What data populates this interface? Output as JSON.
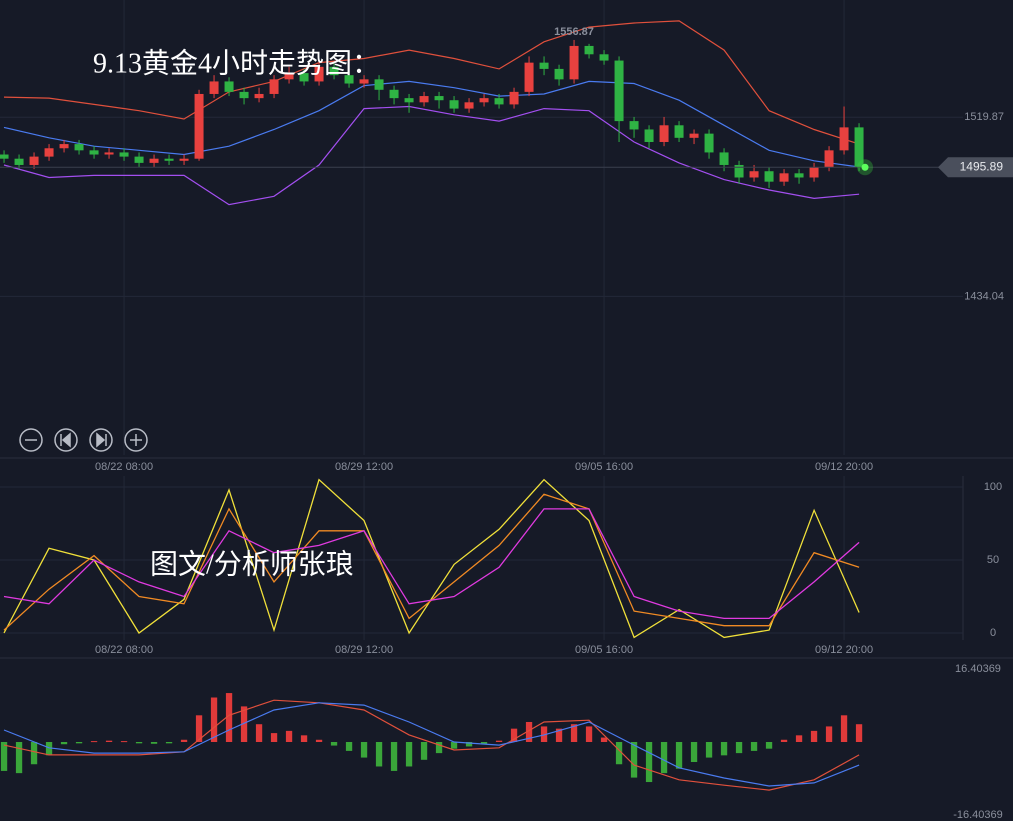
{
  "chart_data": [
    {
      "type": "candlestick",
      "title": "9.13黄金4小时走势图：",
      "up_color": "#e8413f",
      "down_color": "#2fb344",
      "open": [
        1502,
        1500,
        1497,
        1501,
        1505,
        1507,
        1504,
        1502,
        1503,
        1501,
        1498,
        1500,
        1499,
        1500,
        1531,
        1537,
        1532,
        1529,
        1531,
        1538,
        1541,
        1537,
        1544,
        1540,
        1536,
        1538,
        1533,
        1529,
        1527,
        1530,
        1528,
        1524,
        1527,
        1529,
        1526,
        1532,
        1546,
        1543,
        1538,
        1554,
        1550,
        1547,
        1518,
        1514,
        1508,
        1516,
        1510,
        1512,
        1503,
        1497,
        1491,
        1494,
        1489,
        1493,
        1491,
        1496,
        1504,
        1515
      ],
      "high": [
        1504,
        1502,
        1503,
        1507,
        1509,
        1509,
        1506,
        1505,
        1505,
        1503,
        1502,
        1502,
        1502,
        1533,
        1540,
        1539,
        1534,
        1534,
        1540,
        1544,
        1543,
        1546,
        1546,
        1542,
        1540,
        1540,
        1535,
        1531,
        1532,
        1532,
        1530,
        1529,
        1531,
        1531,
        1534,
        1549,
        1549,
        1545,
        1556.87,
        1555,
        1552,
        1549,
        1520,
        1516,
        1520,
        1518,
        1514,
        1514,
        1505,
        1499,
        1497,
        1496,
        1495,
        1495,
        1498,
        1506,
        1525,
        1517
      ],
      "low": [
        1498,
        1495,
        1495,
        1499,
        1503,
        1502,
        1500,
        1500,
        1499,
        1496,
        1496,
        1497,
        1497,
        1499,
        1529,
        1530,
        1526,
        1527,
        1529,
        1536,
        1535,
        1535,
        1538,
        1534,
        1534,
        1528,
        1526,
        1522,
        1525,
        1524,
        1522,
        1522,
        1525,
        1524,
        1524,
        1530,
        1540,
        1535,
        1536,
        1548,
        1545,
        1508,
        1510,
        1505,
        1506,
        1508,
        1507,
        1500,
        1494,
        1488,
        1489,
        1486,
        1487,
        1488,
        1489,
        1494,
        1502,
        1494
      ],
      "close": [
        1500,
        1497,
        1501,
        1505,
        1507,
        1504,
        1502,
        1503,
        1501,
        1498,
        1500,
        1499,
        1500,
        1531,
        1537,
        1532,
        1529,
        1531,
        1538,
        1541,
        1537,
        1544,
        1540,
        1536,
        1538,
        1533,
        1529,
        1527,
        1530,
        1528,
        1524,
        1527,
        1529,
        1526,
        1532,
        1546,
        1543,
        1538,
        1554,
        1550,
        1547,
        1518,
        1514,
        1508,
        1516,
        1510,
        1512,
        1503,
        1497,
        1491,
        1494,
        1489,
        1493,
        1491,
        1496,
        1504,
        1515,
        1495.89
      ],
      "bands": [
        {
          "color": "#e0503c",
          "x": [
            0,
            3,
            6,
            9,
            12,
            15,
            18,
            21,
            24,
            27,
            30,
            33,
            36,
            39,
            42,
            45,
            48,
            51,
            54,
            57
          ],
          "values": [
            1529.5,
            1529,
            1526,
            1523,
            1519,
            1532,
            1537,
            1546,
            1548,
            1552,
            1548,
            1543,
            1556,
            1563,
            1565,
            1566,
            1552,
            1523,
            1514,
            1507
          ]
        },
        {
          "color": "#4a7bf0",
          "x": [
            0,
            3,
            6,
            9,
            12,
            15,
            18,
            21,
            24,
            27,
            30,
            33,
            36,
            39,
            42,
            45,
            48,
            51,
            54,
            57
          ],
          "values": [
            1515,
            1510,
            1506,
            1504,
            1502,
            1506,
            1514,
            1523,
            1535,
            1537,
            1534,
            1530,
            1531,
            1537,
            1536,
            1528,
            1516,
            1504,
            1499,
            1496
          ]
        },
        {
          "color": "#a34ff0",
          "x": [
            0,
            3,
            6,
            9,
            12,
            15,
            18,
            21,
            24,
            27,
            30,
            33,
            36,
            39,
            42,
            45,
            48,
            51,
            54,
            57
          ],
          "values": [
            1497,
            1491,
            1492,
            1492,
            1492,
            1478,
            1482,
            1497,
            1524,
            1525,
            1521,
            1518,
            1524,
            1523,
            1508,
            1498,
            1490,
            1485,
            1481,
            1483
          ]
        }
      ],
      "xlim": [
        -0.27,
        63.93
      ],
      "ylim": [
        1358.1,
        1576
      ],
      "yticks": [
        1434.04,
        1519.87
      ],
      "xticks": [
        {
          "value": 8,
          "label": "08/22 08:00"
        },
        {
          "value": 24,
          "label": "08/29 12:00"
        },
        {
          "value": 40,
          "label": "09/05 16:00"
        },
        {
          "value": 56,
          "label": "09/12 20:00"
        }
      ],
      "grid": true
    },
    {
      "type": "line",
      "annotation": "图文/分析师张琅",
      "series": [
        {
          "color": "#f0e03a",
          "x": [
            0,
            3,
            6,
            9,
            12,
            15,
            18,
            21,
            24,
            27,
            30,
            33,
            36,
            39,
            42,
            45,
            48,
            51,
            54,
            57
          ],
          "values": [
            0,
            58,
            50,
            0,
            23,
            98,
            2,
            105,
            77,
            0,
            47,
            71,
            105,
            77,
            -3,
            16,
            -3,
            2,
            84,
            14
          ]
        },
        {
          "color": "#f08a24",
          "x": [
            0,
            3,
            6,
            9,
            12,
            15,
            18,
            21,
            24,
            27,
            30,
            33,
            36,
            39,
            42,
            45,
            48,
            51,
            54,
            57
          ],
          "values": [
            2,
            30,
            53,
            25,
            20,
            85,
            35,
            70,
            70,
            10,
            35,
            60,
            95,
            85,
            15,
            10,
            5,
            5,
            55,
            45
          ]
        },
        {
          "color": "#e03ae0",
          "x": [
            0,
            3,
            6,
            9,
            12,
            15,
            18,
            21,
            24,
            27,
            30,
            33,
            36,
            39,
            42,
            45,
            48,
            51,
            54,
            57
          ],
          "values": [
            25,
            20,
            50,
            35,
            25,
            70,
            55,
            60,
            70,
            20,
            25,
            45,
            85,
            85,
            25,
            15,
            10,
            10,
            35,
            62
          ]
        }
      ],
      "xlim": [
        -0.27,
        63.93
      ],
      "ylim": [
        -4.8,
        107.5
      ],
      "yticks": [
        0,
        50,
        100
      ],
      "xticks": [
        {
          "value": 8,
          "label": "08/22 08:00"
        },
        {
          "value": 24,
          "label": "08/29 12:00"
        },
        {
          "value": 40,
          "label": "09/05 16:00"
        },
        {
          "value": 56,
          "label": "09/12 20:00"
        }
      ],
      "grid": true
    },
    {
      "type": "macd",
      "up_color": "#e03a3a",
      "down_color": "#3aa63a",
      "values": [
        -6.5,
        -7,
        -5,
        -3,
        -0.5,
        -0.3,
        0.2,
        0.3,
        0.2,
        -0.3,
        -0.4,
        -0.3,
        0.5,
        6,
        10,
        11,
        8,
        4,
        2,
        2.5,
        1.5,
        0.5,
        -0.8,
        -2,
        -3.5,
        -5.5,
        -6.5,
        -5.5,
        -4,
        -2.5,
        -1.5,
        -1,
        -0.5,
        0.3,
        3,
        4.5,
        3.5,
        3,
        4,
        3.5,
        1,
        -5,
        -8,
        -9,
        -7,
        -6,
        -4.5,
        -3.5,
        -3,
        -2.5,
        -2,
        -1.5,
        0.5,
        1.5,
        2.5,
        3.5,
        6,
        4
      ],
      "series": [
        {
          "color": "#e0503c",
          "x": [
            0,
            3,
            6,
            9,
            12,
            15,
            18,
            21,
            24,
            27,
            30,
            33,
            36,
            39,
            42,
            45,
            48,
            51,
            54,
            57
          ],
          "values": [
            -0.7,
            -2.9,
            -2.9,
            -2.9,
            -2.2,
            6,
            9.4,
            8.8,
            7.2,
            1.6,
            -1.8,
            -1.3,
            4.5,
            4.9,
            -5.2,
            -8.5,
            -9.7,
            -10.8,
            -8.5,
            -2.9
          ]
        },
        {
          "color": "#4a7bf0",
          "x": [
            0,
            3,
            6,
            9,
            12,
            15,
            18,
            21,
            24,
            27,
            30,
            33,
            36,
            39,
            42,
            45,
            48,
            51,
            54,
            57
          ],
          "values": [
            2.7,
            -1.3,
            -2.5,
            -2.5,
            -2.2,
            2.7,
            7.2,
            8.8,
            8.3,
            4.5,
            0,
            -0.7,
            1.6,
            4.5,
            -0.7,
            -5.8,
            -8.1,
            -9.9,
            -9.2,
            -5.2
          ]
        }
      ],
      "xlim": [
        -0.27,
        63.93
      ],
      "ylim": [
        -18.43,
        18.43
      ],
      "yticks": [
        -16.40369,
        16.40369
      ]
    }
  ]
}
